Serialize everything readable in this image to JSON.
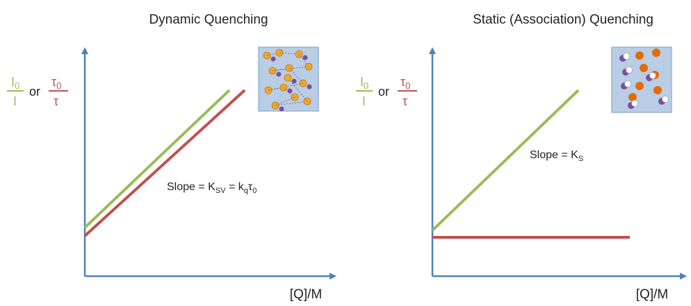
{
  "panels": [
    {
      "title": "Dynamic Quenching",
      "y_label": {
        "num1": "I",
        "num1_sub": "0",
        "den1": "I",
        "or": "or",
        "num2": "τ",
        "num2_sub": "0",
        "den2": "τ"
      },
      "x_label": "[Q]/M",
      "slope": [
        "Slope = K",
        "SV",
        " = k",
        "q",
        "τ",
        "0"
      ]
    },
    {
      "title": "Static (Association) Quenching",
      "y_label": {
        "num1": "I",
        "num1_sub": "0",
        "den1": "I",
        "or": "or",
        "num2": "τ",
        "num2_sub": "0",
        "den2": "τ"
      },
      "x_label": "[Q]/M",
      "slope": [
        "Slope = K",
        "S"
      ]
    }
  ]
}
